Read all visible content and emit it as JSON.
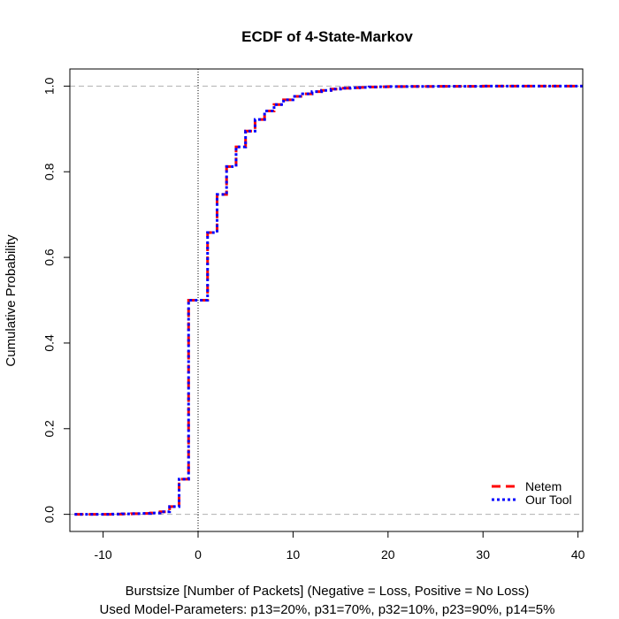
{
  "chart_data": {
    "type": "line",
    "title": "ECDF of 4-State-Markov",
    "xlabel": "Burstsize [Number of Packets] (Negative = Loss, Positive = No Loss)",
    "xlabel2": "Used Model-Parameters: p13=20%, p31=70%, p32=10%, p23=90%, p14=5%",
    "ylabel": "Cumulative Probability",
    "xlim": [
      -13.5,
      40.5
    ],
    "ylim": [
      -0.04,
      1.04
    ],
    "xticks": [
      -10,
      0,
      10,
      20,
      30,
      40
    ],
    "yticks": [
      0.0,
      0.2,
      0.4,
      0.6,
      0.8,
      1.0
    ],
    "xtick_labels": [
      "-10",
      "0",
      "10",
      "20",
      "30",
      "40"
    ],
    "ytick_labels": [
      "0.0",
      "0.2",
      "0.4",
      "0.6",
      "0.8",
      "1.0"
    ],
    "reference_lines": {
      "horizontal": [
        0.0,
        1.0
      ],
      "vertical": [
        0
      ]
    },
    "legend_position": "bottom-right",
    "series": [
      {
        "name": "Netem",
        "color": "#ff0000",
        "style": "dashed",
        "x": [
          -13,
          -9,
          -8,
          -7,
          -6,
          -5,
          -4,
          -3,
          -2,
          -1,
          1,
          2,
          3,
          4,
          5,
          6,
          7,
          8,
          9,
          10,
          11,
          12,
          13,
          14,
          15,
          16,
          17,
          18,
          19,
          20,
          22,
          25,
          30,
          40
        ],
        "y": [
          0.0,
          0.0005,
          0.001,
          0.0015,
          0.002,
          0.003,
          0.006,
          0.018,
          0.082,
          0.5,
          0.658,
          0.747,
          0.812,
          0.858,
          0.895,
          0.922,
          0.942,
          0.957,
          0.968,
          0.976,
          0.982,
          0.987,
          0.99,
          0.993,
          0.995,
          0.996,
          0.997,
          0.998,
          0.9985,
          0.999,
          0.9993,
          0.9996,
          0.9999,
          1.0
        ]
      },
      {
        "name": "Our Tool",
        "color": "#0000ff",
        "style": "dotted",
        "x": [
          -13,
          -9,
          -8,
          -7,
          -6,
          -5,
          -4,
          -3,
          -2,
          -1,
          1,
          2,
          3,
          4,
          5,
          6,
          7,
          8,
          9,
          10,
          11,
          12,
          13,
          14,
          15,
          16,
          17,
          18,
          19,
          20,
          22,
          25,
          30,
          40
        ],
        "y": [
          0.0,
          0.0005,
          0.001,
          0.0015,
          0.002,
          0.003,
          0.006,
          0.018,
          0.082,
          0.5,
          0.658,
          0.747,
          0.812,
          0.858,
          0.895,
          0.922,
          0.942,
          0.957,
          0.968,
          0.976,
          0.982,
          0.987,
          0.99,
          0.993,
          0.995,
          0.996,
          0.997,
          0.998,
          0.9985,
          0.999,
          0.9993,
          0.9996,
          0.9999,
          1.0
        ]
      }
    ]
  }
}
